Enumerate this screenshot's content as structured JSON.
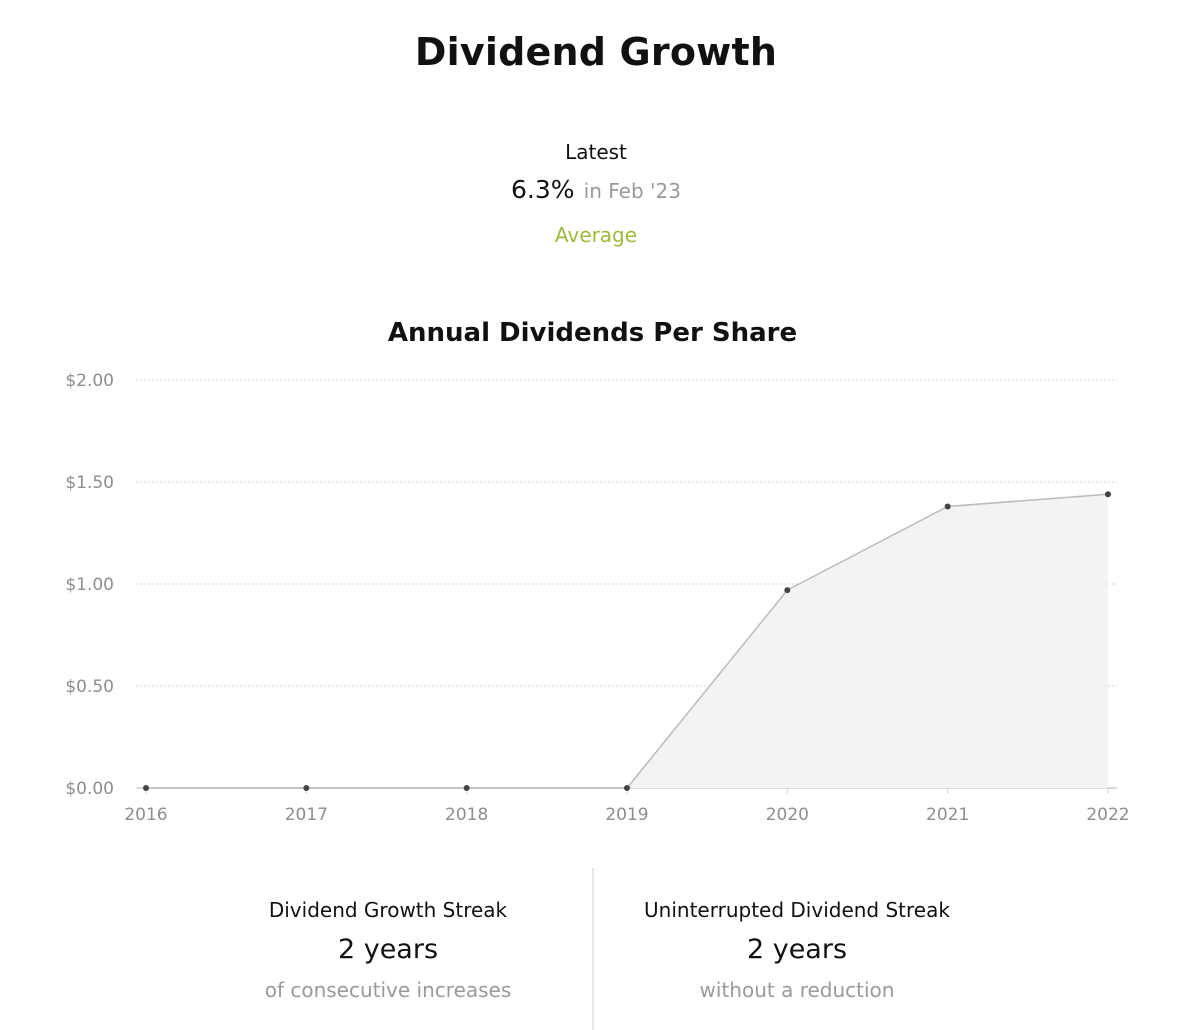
{
  "header": {
    "title": "Dividend Growth"
  },
  "latest": {
    "label": "Latest",
    "value": "6.3%",
    "when": "in Feb '23",
    "rating": "Average",
    "rating_color": "#9bbb3c"
  },
  "chart_data": {
    "type": "area",
    "title": "Annual Dividends Per Share",
    "xlabel": "",
    "ylabel": "",
    "categories": [
      "2016",
      "2017",
      "2018",
      "2019",
      "2020",
      "2021",
      "2022"
    ],
    "values": [
      0.0,
      0.0,
      0.0,
      0.0,
      0.97,
      1.38,
      1.44
    ],
    "ylim": [
      0,
      2
    ],
    "yticks": [
      0,
      0.5,
      1.0,
      1.5,
      2.0
    ],
    "ytick_labels": [
      "$0.00",
      "$0.50",
      "$1.00",
      "$1.50",
      "$2.00"
    ],
    "grid": true,
    "legend": "none",
    "line_color": "#bbbbbb",
    "fill_color": "#f3f3f3",
    "marker_color": "#444444"
  },
  "stats": [
    {
      "title": "Dividend Growth Streak",
      "value": "2 years",
      "note": "of consecutive increases"
    },
    {
      "title": "Uninterrupted Dividend Streak",
      "value": "2 years",
      "note": "without a reduction"
    }
  ]
}
